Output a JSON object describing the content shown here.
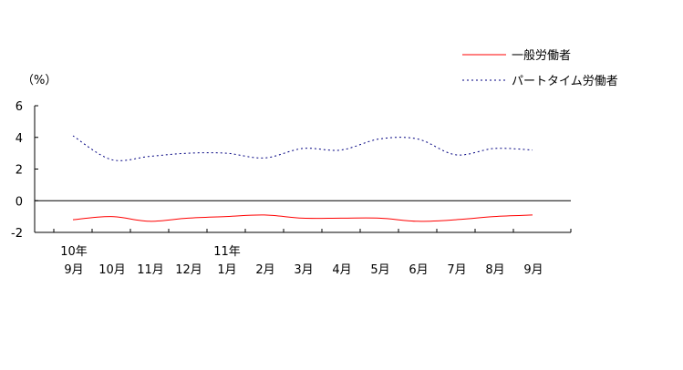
{
  "chart_data": {
    "type": "line",
    "ylabel": "（%）",
    "ylim": [
      -2,
      6
    ],
    "yticks": [
      6,
      4,
      2,
      0,
      -2
    ],
    "categories": [
      "9月",
      "10月",
      "11月",
      "12月",
      "1月",
      "2月",
      "3月",
      "4月",
      "5月",
      "6月",
      "7月",
      "8月",
      "9月"
    ],
    "year_labels": [
      {
        "index": 0,
        "label": "10年"
      },
      {
        "index": 4,
        "label": "11年"
      }
    ],
    "series": [
      {
        "name": "一般労働者",
        "color": "#ff0000",
        "style": "solid",
        "values": [
          -1.2,
          -1.0,
          -1.3,
          -1.1,
          -1.0,
          -0.9,
          -1.1,
          -1.1,
          -1.1,
          -1.3,
          -1.2,
          -1.0,
          -0.9
        ]
      },
      {
        "name": "パートタイム労働者",
        "color": "#000080",
        "style": "dotted",
        "values": [
          4.1,
          2.6,
          2.8,
          3.0,
          3.0,
          2.7,
          3.3,
          3.2,
          3.9,
          3.9,
          2.9,
          3.3,
          3.2
        ]
      }
    ],
    "grid": false,
    "legend_position": "top-right"
  }
}
